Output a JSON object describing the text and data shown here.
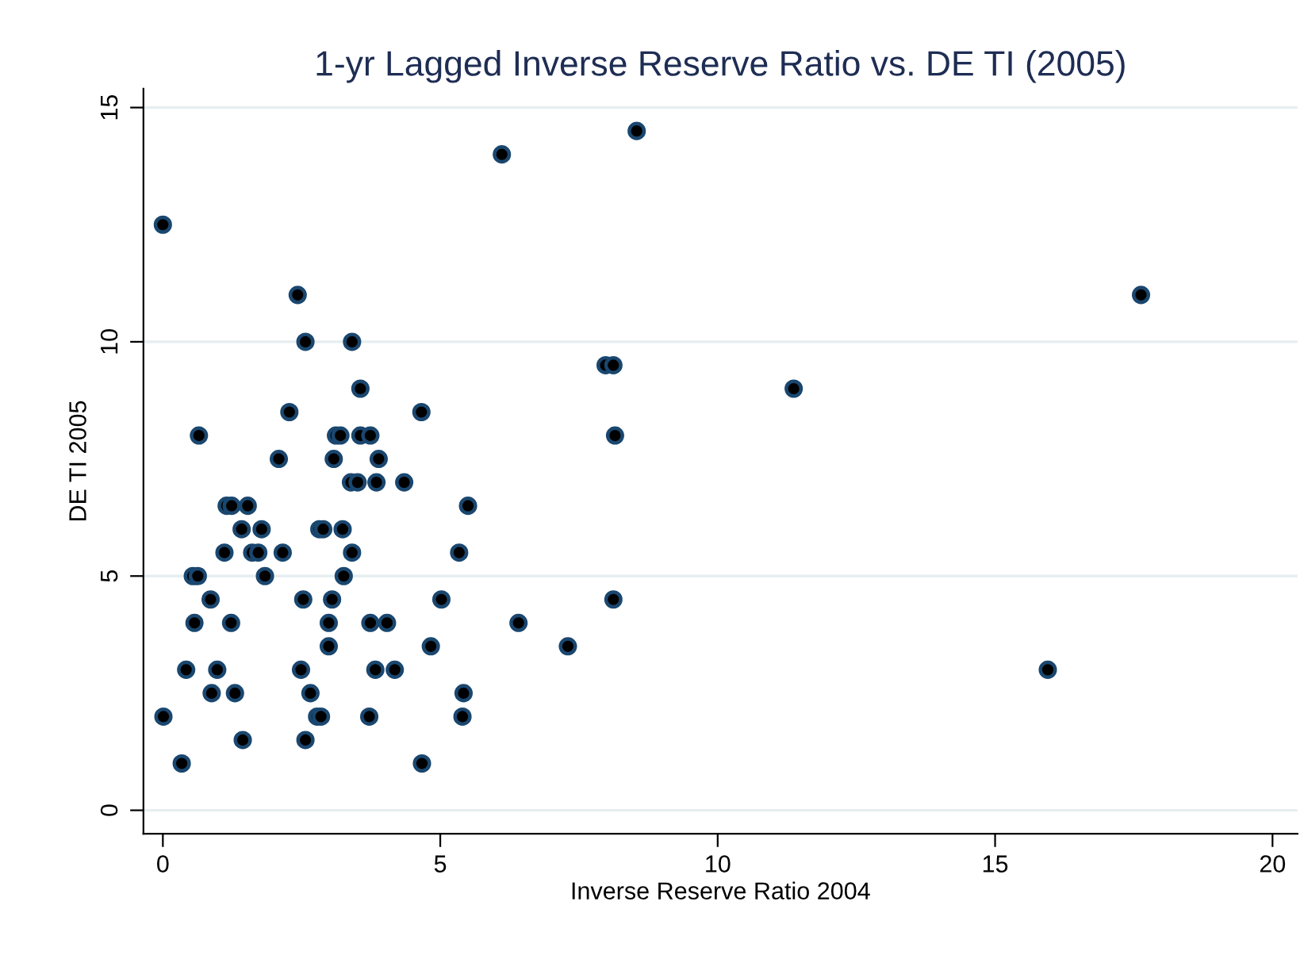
{
  "chart_data": {
    "type": "scatter",
    "title": "1-yr Lagged Inverse Reserve Ratio vs. DE TI (2005)",
    "xlabel": "Inverse Reserve Ratio 2004",
    "ylabel": "DE TI 2005",
    "x": [
      2.43,
      2.57,
      3.41,
      3.56,
      2.28,
      4.66,
      0.65,
      3.12,
      3.2,
      3.56,
      3.74,
      2.09,
      3.08,
      3.89,
      3.39,
      3.51,
      3.85,
      4.35,
      1.15,
      1.24,
      1.53,
      5.5,
      1.42,
      1.78,
      2.82,
      2.89,
      3.24,
      1.11,
      1.61,
      1.72,
      2.16,
      3.41,
      5.34,
      0.54,
      0.63,
      1.84,
      3.26,
      0.86,
      2.53,
      3.05,
      5.02,
      0.57,
      1.23,
      2.99,
      3.74,
      4.04,
      2.99,
      4.83,
      0.42,
      0.98,
      2.49,
      3.83,
      4.18,
      0.88,
      1.3,
      2.66,
      5.42,
      0.01,
      2.78,
      2.85,
      3.72,
      5.4,
      1.44,
      2.57,
      0.34,
      4.67,
      0.0,
      6.11,
      8.54,
      17.63,
      7.98,
      8.12,
      11.37,
      8.15,
      6.41,
      7.3,
      8.12,
      15.95
    ],
    "series": [
      {
        "color": "#1a476f",
        "values": [
          11,
          10,
          10,
          9,
          8.5,
          8.5,
          8,
          8,
          8,
          8,
          8,
          7.5,
          7.5,
          7.5,
          7,
          7,
          7,
          7,
          6.5,
          6.5,
          6.5,
          6.5,
          6,
          6,
          6,
          6,
          6,
          5.5,
          5.5,
          5.5,
          5.5,
          5.5,
          5.5,
          5,
          5,
          5,
          5,
          4.5,
          4.5,
          4.5,
          4.5,
          4,
          4,
          4,
          4,
          4,
          3.5,
          3.5,
          3,
          3,
          3,
          3,
          3,
          2.5,
          2.5,
          2.5,
          2.5,
          2,
          2,
          2,
          2,
          2,
          1.5,
          1.5,
          1,
          1,
          12.5,
          14,
          14.5,
          11,
          9.5,
          9.5,
          9,
          8,
          4,
          3.5,
          4.5,
          3
        ]
      }
    ],
    "xlim": [
      -0.35,
      20.45
    ],
    "ylim": [
      -0.5,
      15.4
    ],
    "xticks": [
      0,
      5,
      10,
      15,
      20
    ],
    "yticks": [
      0,
      5,
      10,
      15
    ],
    "grid": "y",
    "marker": "circle"
  }
}
